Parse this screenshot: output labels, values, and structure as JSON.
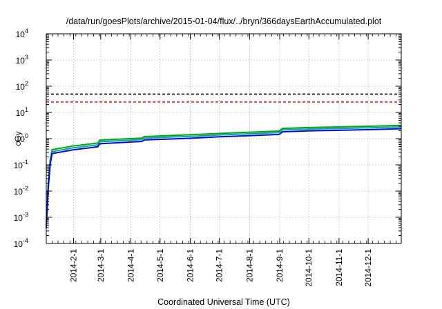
{
  "chart_data": {
    "type": "line",
    "title": "/data/run/goesPlots/archive/2015-01-04/flux/../bryn/366daysEarthAccumulated.plot",
    "xlabel": "Coordinated Universal Time (UTC)",
    "ylabel": "cGy",
    "yscale": "log",
    "ylim_exponents": [
      -4,
      4
    ],
    "y_tick_base": "10",
    "y_tick_exponents": [
      "-4",
      "-3",
      "-2",
      "-1",
      "0",
      "1",
      "2",
      "3",
      "4"
    ],
    "xlim": [
      "2014-01-04",
      "2015-01-04"
    ],
    "x_ticks": [
      "2014-2-1",
      "2014-3-1",
      "2014-4-1",
      "2014-5-1",
      "2014-6-1",
      "2014-7-1",
      "2014-8-1",
      "2014-9-1",
      "2014-10-1",
      "2014-11-1",
      "2014-12-1"
    ],
    "grid": true,
    "thresholds": [
      {
        "value": 50,
        "color": "#000000",
        "style": "dashed"
      },
      {
        "value": 25,
        "color": "#ff0000",
        "style": "dashed"
      }
    ],
    "series": [
      {
        "color": "#00aa00",
        "x": [
          "2014-01-04",
          "2014-01-06",
          "2014-01-08",
          "2014-01-10",
          "2014-01-31",
          "2014-02-26",
          "2014-02-28",
          "2014-03-31",
          "2014-04-12",
          "2014-04-15",
          "2014-05-31",
          "2014-06-30",
          "2014-07-31",
          "2014-08-31",
          "2014-09-01",
          "2014-09-04",
          "2014-09-30",
          "2014-10-31",
          "2014-11-30",
          "2015-01-04"
        ],
        "y": [
          0.0006,
          0.02,
          0.15,
          0.38,
          0.52,
          0.68,
          0.88,
          1.0,
          1.05,
          1.2,
          1.4,
          1.58,
          1.75,
          1.95,
          2.05,
          2.45,
          2.65,
          2.8,
          2.95,
          3.2
        ]
      },
      {
        "color": "#00aaaa",
        "x": [
          "2014-01-04",
          "2014-01-06",
          "2014-01-08",
          "2014-01-10",
          "2014-01-31",
          "2014-02-26",
          "2014-02-28",
          "2014-03-31",
          "2014-04-12",
          "2014-04-15",
          "2014-05-31",
          "2014-06-30",
          "2014-07-31",
          "2014-08-31",
          "2014-09-01",
          "2014-09-04",
          "2014-09-30",
          "2014-10-31",
          "2014-11-30",
          "2015-01-04"
        ],
        "y": [
          0.0005,
          0.015,
          0.12,
          0.32,
          0.44,
          0.58,
          0.76,
          0.87,
          0.92,
          1.05,
          1.22,
          1.38,
          1.53,
          1.7,
          1.78,
          2.15,
          2.32,
          2.45,
          2.58,
          2.8
        ]
      },
      {
        "color": "#0000ff",
        "x": [
          "2014-01-04",
          "2014-01-06",
          "2014-01-08",
          "2014-01-10",
          "2014-01-31",
          "2014-02-26",
          "2014-02-28",
          "2014-03-31",
          "2014-04-12",
          "2014-04-15",
          "2014-05-31",
          "2014-06-30",
          "2014-07-31",
          "2014-08-31",
          "2014-09-01",
          "2014-09-04",
          "2014-09-30",
          "2014-10-31",
          "2014-11-30",
          "2015-01-04"
        ],
        "y": [
          0.0004,
          0.012,
          0.1,
          0.27,
          0.37,
          0.49,
          0.64,
          0.74,
          0.78,
          0.89,
          1.03,
          1.17,
          1.3,
          1.44,
          1.5,
          1.82,
          1.97,
          2.08,
          2.2,
          2.4
        ]
      }
    ]
  }
}
